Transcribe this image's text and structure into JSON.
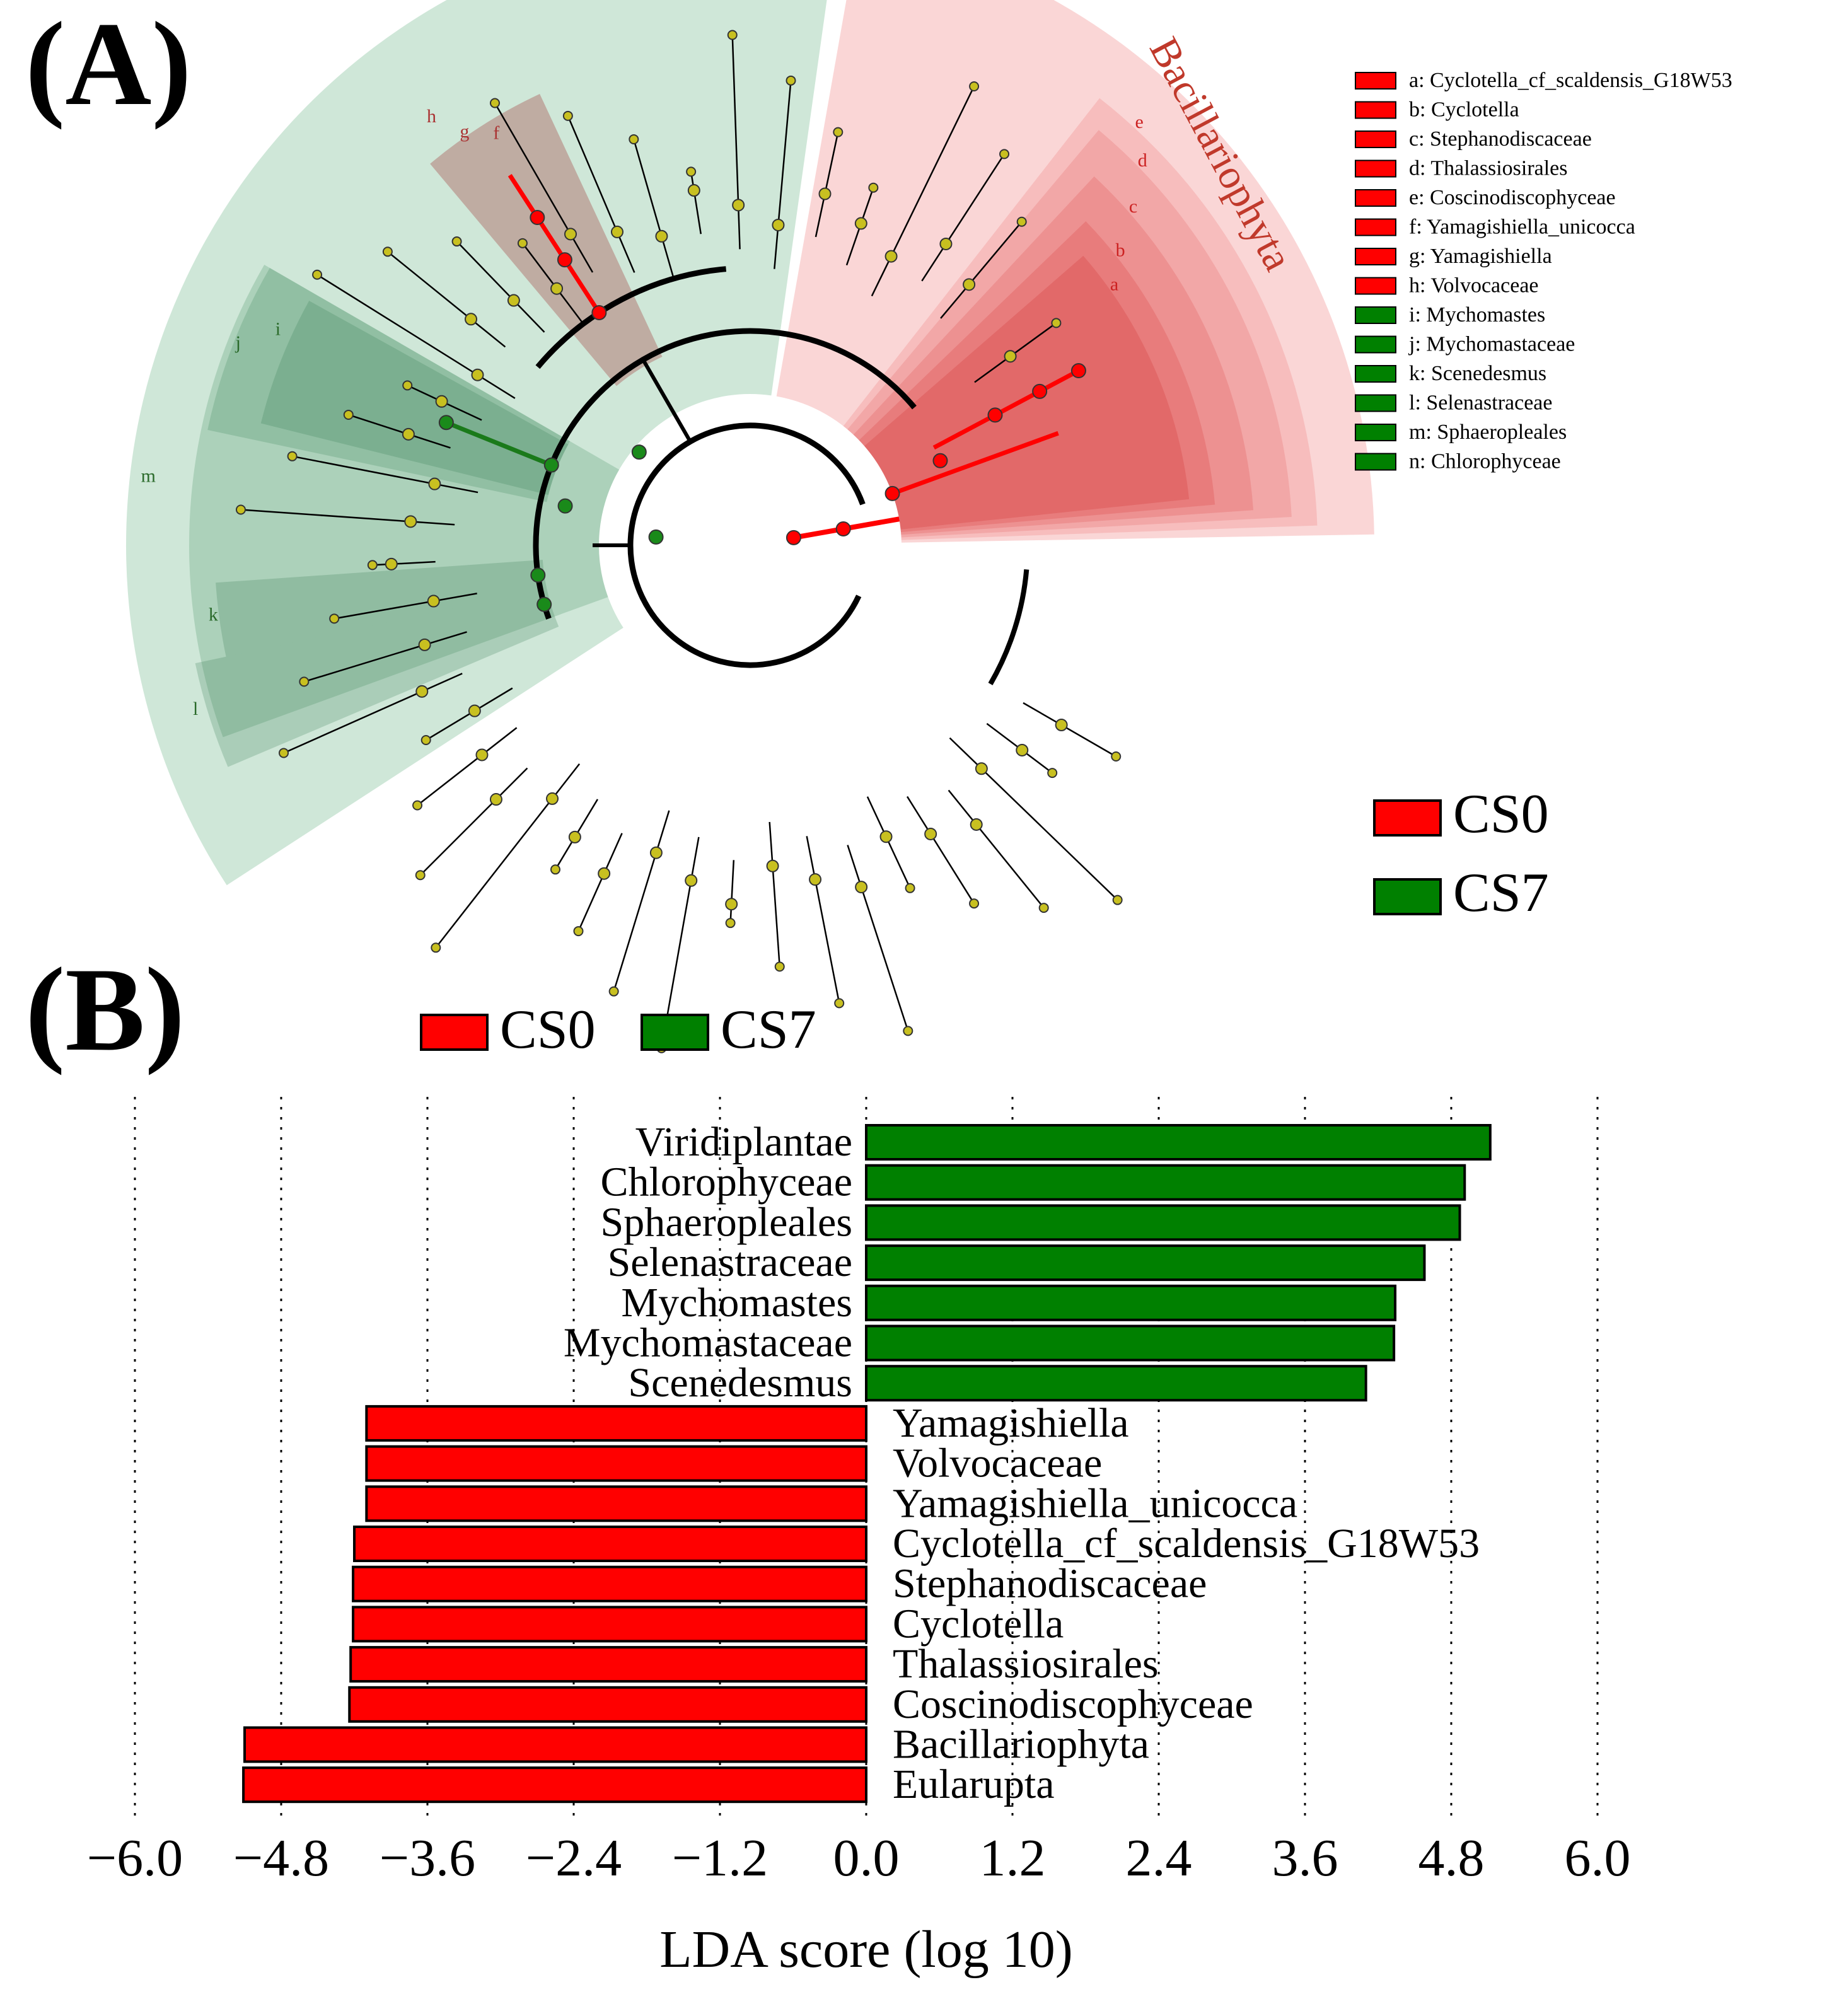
{
  "panel_a": {
    "label": "(A)",
    "clade_label": "Bacillariophyta",
    "legend_items": [
      {
        "letter": "a",
        "text": "a: Cyclotella_cf_scaldensis_G18W53",
        "group": "CS0"
      },
      {
        "letter": "b",
        "text": "b: Cyclotella",
        "group": "CS0"
      },
      {
        "letter": "c",
        "text": "c: Stephanodiscaceae",
        "group": "CS0"
      },
      {
        "letter": "d",
        "text": "d: Thalassiosirales",
        "group": "CS0"
      },
      {
        "letter": "e",
        "text": "e: Coscinodiscophyceae",
        "group": "CS0"
      },
      {
        "letter": "f",
        "text": "f: Yamagishiella_unicocca",
        "group": "CS0"
      },
      {
        "letter": "g",
        "text": "g: Yamagishiella",
        "group": "CS0"
      },
      {
        "letter": "h",
        "text": "h: Volvocaceae",
        "group": "CS0"
      },
      {
        "letter": "i",
        "text": "i: Mychomastes",
        "group": "CS7"
      },
      {
        "letter": "j",
        "text": "j: Mychomastaceae",
        "group": "CS7"
      },
      {
        "letter": "k",
        "text": "k: Scenedesmus",
        "group": "CS7"
      },
      {
        "letter": "l",
        "text": "l: Selenastraceae",
        "group": "CS7"
      },
      {
        "letter": "m",
        "text": "m: Sphaeropleales",
        "group": "CS7"
      },
      {
        "letter": "n",
        "text": "n: Chlorophyceae",
        "group": "CS7"
      }
    ],
    "group_legend": [
      {
        "name": "CS0",
        "color": "#ff0000"
      },
      {
        "name": "CS7",
        "color": "#008000"
      }
    ]
  },
  "chart_data": {
    "type": "bar",
    "orientation": "horizontal",
    "panel_label": "(B)",
    "xlabel": "LDA score (log 10)",
    "xlim": [
      -6.0,
      6.0
    ],
    "xticks": [
      -6.0,
      -4.8,
      -3.6,
      -2.4,
      -1.2,
      0.0,
      1.2,
      2.4,
      3.6,
      4.8,
      6.0
    ],
    "xtick_labels": [
      "−6.0",
      "−4.8",
      "−3.6",
      "−2.4",
      "−1.2",
      "0.0",
      "1.2",
      "2.4",
      "3.6",
      "4.8",
      "6.0"
    ],
    "grid": "vertical dotted",
    "legend": [
      {
        "name": "CS0",
        "color": "#ff0000"
      },
      {
        "name": "CS7",
        "color": "#008000"
      }
    ],
    "legend_position": "top",
    "categories": [
      "Viridiplantae",
      "Chlorophyceae",
      "Sphaeropleales",
      "Selenastraceae",
      "Mychomastes",
      "Mychomastaceae",
      "Scenedesmus",
      "Yamagishiella",
      "Volvocaceae",
      "Yamagishiella_unicocca",
      "Cyclotella_cf_scaldensis_G18W53",
      "Stephanodiscaceae",
      "Cyclotella",
      "Thalassiosirales",
      "Coscinodiscophyceae",
      "Bacillariophyta",
      "Eularupta"
    ],
    "values": [
      5.12,
      4.91,
      4.87,
      4.58,
      4.34,
      4.33,
      4.1,
      -4.1,
      -4.1,
      -4.1,
      -4.2,
      -4.21,
      -4.21,
      -4.23,
      -4.24,
      -5.1,
      -5.11
    ],
    "groups": [
      "CS7",
      "CS7",
      "CS7",
      "CS7",
      "CS7",
      "CS7",
      "CS7",
      "CS0",
      "CS0",
      "CS0",
      "CS0",
      "CS0",
      "CS0",
      "CS0",
      "CS0",
      "CS0",
      "CS0"
    ]
  }
}
